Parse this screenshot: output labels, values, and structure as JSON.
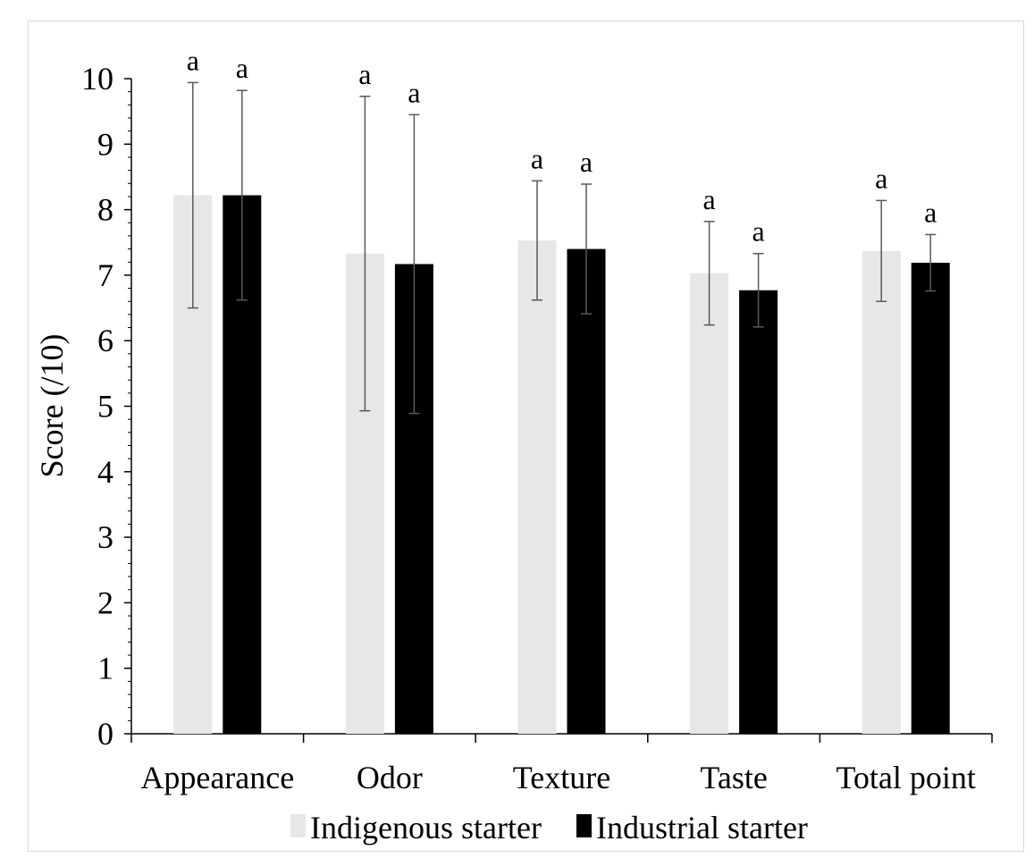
{
  "chart_data": {
    "type": "bar",
    "ylabel": "Score (/10)",
    "ylim": [
      0,
      10
    ],
    "yticks": [
      "0",
      "1",
      "2",
      "3",
      "4",
      "5",
      "6",
      "7",
      "8",
      "9",
      "10"
    ],
    "categories": [
      "Appearance",
      "Odor",
      "Texture",
      "Taste",
      "Total point"
    ],
    "series": [
      {
        "name": "Indigenous starter",
        "color": "#e7e7e7",
        "values": [
          8.22,
          7.33,
          7.53,
          7.03,
          7.37
        ],
        "error": [
          1.72,
          2.4,
          0.91,
          0.79,
          0.77
        ],
        "labels": [
          "a",
          "a",
          "a",
          "a",
          "a"
        ]
      },
      {
        "name": "Industrial starter",
        "color": "#000000",
        "values": [
          8.22,
          7.17,
          7.4,
          6.77,
          7.19
        ],
        "error": [
          1.6,
          2.28,
          0.99,
          0.56,
          0.43
        ],
        "labels": [
          "a",
          "a",
          "a",
          "a",
          "a"
        ]
      }
    ],
    "grid": false,
    "legend_position": "bottom"
  }
}
